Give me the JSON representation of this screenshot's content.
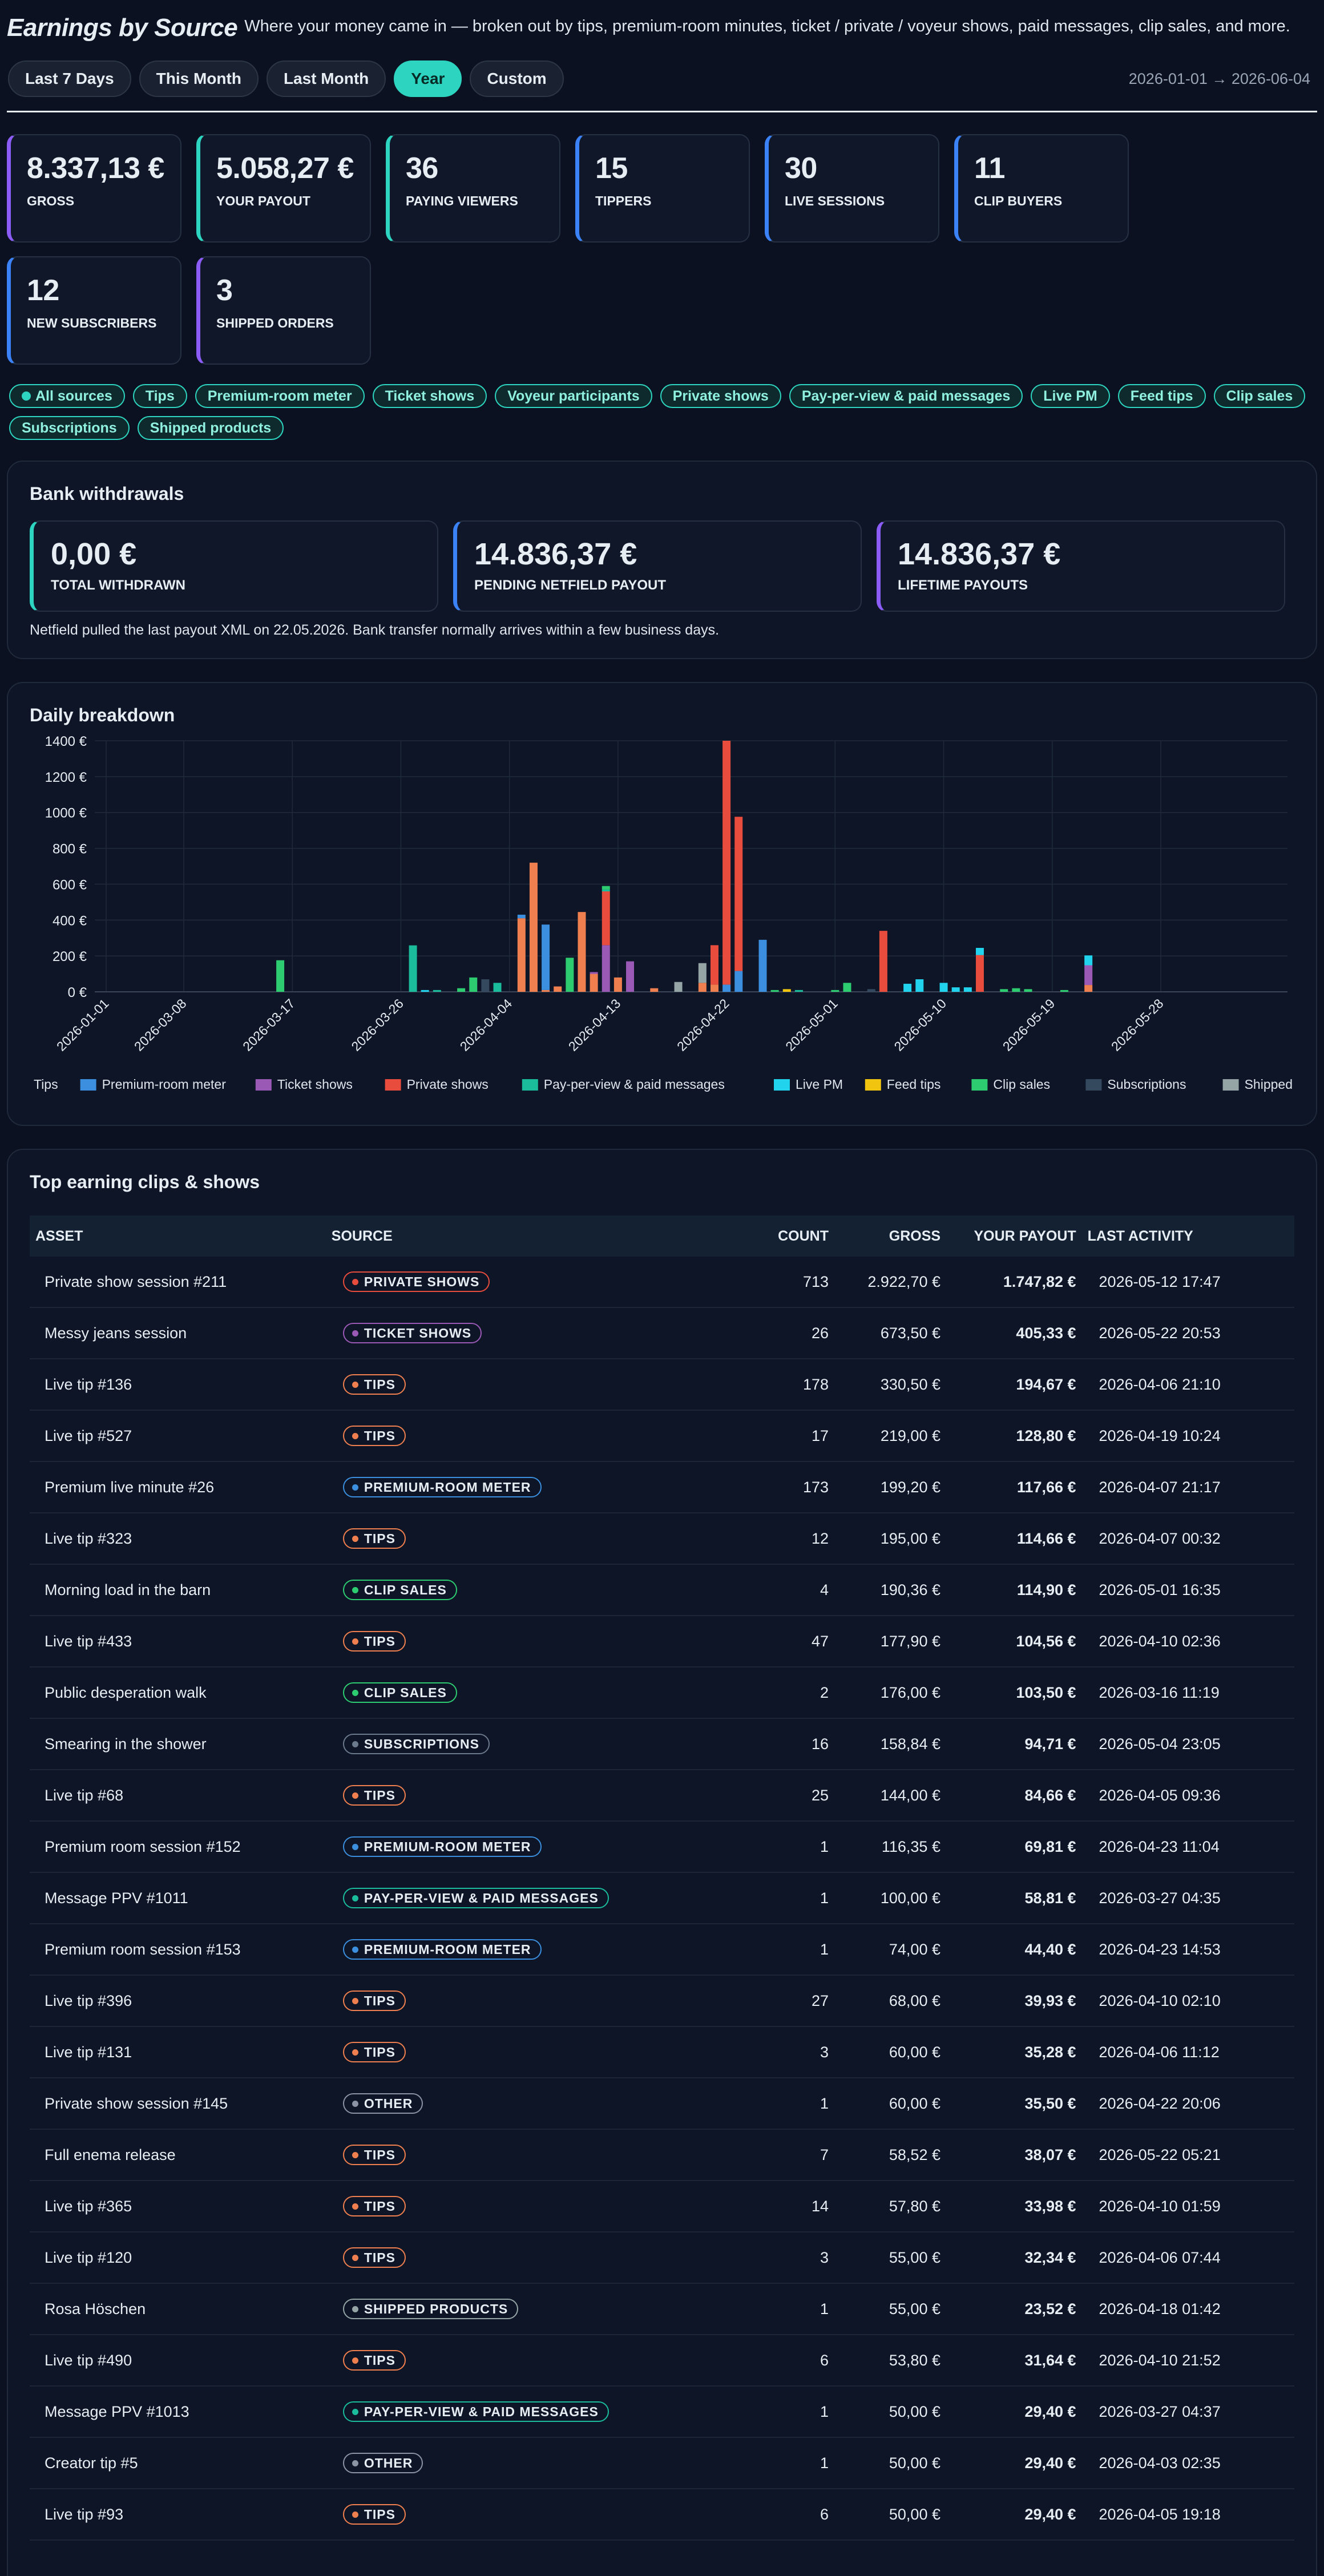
{
  "header": {
    "title": "Earnings by Source",
    "subtitle": "Where your money came in — broken out by tips, premium-room minutes, ticket / private / voyeur shows, paid messages, clip sales, and more."
  },
  "periods": [
    "Last 7 Days",
    "This Month",
    "Last Month",
    "Year",
    "Custom"
  ],
  "active_period": "Year",
  "date_range": "2026-01-01 → 2026-06-04",
  "stats": [
    {
      "value": "8.337,13 €",
      "label": "Gross",
      "accent": "#8b5cf6"
    },
    {
      "value": "5.058,27 €",
      "label": "Your payout",
      "accent": "#2dd4bf"
    },
    {
      "value": "36",
      "label": "Paying viewers",
      "accent": "#2dd4bf"
    },
    {
      "value": "15",
      "label": "Tippers",
      "accent": "#3b82f6"
    },
    {
      "value": "30",
      "label": "Live sessions",
      "accent": "#3b82f6"
    },
    {
      "value": "11",
      "label": "Clip buyers",
      "accent": "#3b82f6"
    },
    {
      "value": "12",
      "label": "New subscribers",
      "accent": "#3b82f6"
    },
    {
      "value": "3",
      "label": "Shipped orders",
      "accent": "#8b5cf6"
    }
  ],
  "filters": [
    "All sources",
    "Tips",
    "Premium-room meter",
    "Ticket shows",
    "Voyeur participants",
    "Private shows",
    "Pay-per-view & paid messages",
    "Live PM",
    "Feed tips",
    "Clip sales",
    "Subscriptions",
    "Shipped products"
  ],
  "withdrawals": {
    "title": "Bank withdrawals",
    "cards": [
      {
        "value": "0,00 €",
        "label": "TOTAL WITHDRAWN"
      },
      {
        "value": "14.836,37 €",
        "label": "PENDING NETFIELD PAYOUT"
      },
      {
        "value": "14.836,37 €",
        "label": "LIFETIME PAYOUTS"
      }
    ],
    "note": "Netfield pulled the last payout XML on 22.05.2026. Bank transfer normally arrives within a few business days."
  },
  "chart_title": "Daily breakdown",
  "chart_data": {
    "type": "bar",
    "stacked": true,
    "x_ticks": [
      "2026-01-01",
      "2026-03-08",
      "2026-03-17",
      "2026-03-26",
      "2026-04-04",
      "2026-04-13",
      "2026-04-22",
      "2026-05-01",
      "2026-05-10",
      "2026-05-19",
      "2026-05-28"
    ],
    "y_ticks": [
      "0 €",
      "200 €",
      "400 €",
      "600 €",
      "800 €",
      "1000 €",
      "1200 €",
      "1400 €"
    ],
    "ylim": [
      0,
      1400
    ],
    "grid": true,
    "legend_position": "bottom",
    "series": [
      {
        "name": "Tips",
        "color": "#f07f4f"
      },
      {
        "name": "Premium-room meter",
        "color": "#3b8fde"
      },
      {
        "name": "Ticket shows",
        "color": "#9b59b6"
      },
      {
        "name": "Private shows",
        "color": "#e74c3c"
      },
      {
        "name": "Pay-per-view & paid messages",
        "color": "#1abc9c"
      },
      {
        "name": "Live PM",
        "color": "#22d3ee"
      },
      {
        "name": "Feed tips",
        "color": "#f1c40f"
      },
      {
        "name": "Clip sales",
        "color": "#2ecc71"
      },
      {
        "name": "Subscriptions",
        "color": "#34495e"
      },
      {
        "name": "Shipped products",
        "color": "#95a5a6"
      }
    ],
    "bars": [
      {
        "date": "2026-03-16",
        "Clip sales": 176
      },
      {
        "date": "2026-03-27",
        "Pay-per-view & paid messages": 259
      },
      {
        "date": "2026-03-28",
        "Live PM": 10
      },
      {
        "date": "2026-03-29",
        "Pay-per-view & paid messages": 10
      },
      {
        "date": "2026-03-31",
        "Clip sales": 20
      },
      {
        "date": "2026-04-01",
        "Clip sales": 80
      },
      {
        "date": "2026-04-02",
        "Subscriptions": 70
      },
      {
        "date": "2026-04-03",
        "Pay-per-view & paid messages": 50
      },
      {
        "date": "2026-04-05",
        "Tips": 410,
        "Premium-room meter": 20
      },
      {
        "date": "2026-04-06",
        "Tips": 720
      },
      {
        "date": "2026-04-07",
        "Premium-room meter": 365,
        "Tips": 10
      },
      {
        "date": "2026-04-08",
        "Tips": 30
      },
      {
        "date": "2026-04-09",
        "Clip sales": 190
      },
      {
        "date": "2026-04-10",
        "Tips": 445
      },
      {
        "date": "2026-04-11",
        "Tips": 100,
        "Ticket shows": 10
      },
      {
        "date": "2026-04-12",
        "Private shows": 300,
        "Ticket shows": 260,
        "Clip sales": 20,
        "Pay-per-view & paid messages": 10
      },
      {
        "date": "2026-04-13",
        "Tips": 80
      },
      {
        "date": "2026-04-14",
        "Ticket shows": 170
      },
      {
        "date": "2026-04-16",
        "Tips": 20
      },
      {
        "date": "2026-04-18",
        "Shipped products": 55
      },
      {
        "date": "2026-04-20",
        "Tips": 50,
        "Shipped products": 110
      },
      {
        "date": "2026-04-21",
        "Tips": 40,
        "Private shows": 220
      },
      {
        "date": "2026-04-22",
        "Private shows": 1360,
        "Premium-room meter": 40
      },
      {
        "date": "2026-04-23",
        "Private shows": 860,
        "Premium-room meter": 116
      },
      {
        "date": "2026-04-25",
        "Premium-room meter": 290
      },
      {
        "date": "2026-04-26",
        "Clip sales": 10
      },
      {
        "date": "2026-04-27",
        "Feed tips": 15
      },
      {
        "date": "2026-04-28",
        "Pay-per-view & paid messages": 10
      },
      {
        "date": "2026-05-01",
        "Clip sales": 10
      },
      {
        "date": "2026-05-02",
        "Clip sales": 50
      },
      {
        "date": "2026-05-04",
        "Subscriptions": 15
      },
      {
        "date": "2026-05-05",
        "Private shows": 340
      },
      {
        "date": "2026-05-07",
        "Live PM": 45
      },
      {
        "date": "2026-05-08",
        "Live PM": 70
      },
      {
        "date": "2026-05-10",
        "Live PM": 50
      },
      {
        "date": "2026-05-11",
        "Live PM": 25
      },
      {
        "date": "2026-05-12",
        "Live PM": 25
      },
      {
        "date": "2026-05-13",
        "Private shows": 205,
        "Live PM": 40
      },
      {
        "date": "2026-05-15",
        "Clip sales": 15
      },
      {
        "date": "2026-05-16",
        "Clip sales": 20
      },
      {
        "date": "2026-05-17",
        "Clip sales": 15
      },
      {
        "date": "2026-05-20",
        "Clip sales": 10
      },
      {
        "date": "2026-05-22",
        "Tips": 38,
        "Ticket shows": 110,
        "Live PM": 55
      }
    ]
  },
  "table": {
    "title": "Top earning clips & shows",
    "headers": [
      "ASSET",
      "SOURCE",
      "COUNT",
      "GROSS",
      "YOUR PAYOUT",
      "LAST ACTIVITY"
    ],
    "source_colors": {
      "PRIVATE SHOWS": "#e74c3c",
      "TICKET SHOWS": "#9b59b6",
      "TIPS": "#f07f4f",
      "PREMIUM-ROOM METER": "#3b8fde",
      "CLIP SALES": "#2ecc71",
      "SUBSCRIPTIONS": "#6b7a8c",
      "PAY-PER-VIEW & PAID MESSAGES": "#1abc9c",
      "OTHER": "#8a94a3",
      "SHIPPED PRODUCTS": "#95a5a6"
    },
    "rows": [
      {
        "asset": "Private show session #211",
        "source": "PRIVATE SHOWS",
        "count": "713",
        "gross": "2.922,70 €",
        "payout": "1.747,82 €",
        "last": "2026-05-12 17:47"
      },
      {
        "asset": "Messy jeans session",
        "source": "TICKET SHOWS",
        "count": "26",
        "gross": "673,50 €",
        "payout": "405,33 €",
        "last": "2026-05-22 20:53"
      },
      {
        "asset": "Live tip #136",
        "source": "TIPS",
        "count": "178",
        "gross": "330,50 €",
        "payout": "194,67 €",
        "last": "2026-04-06 21:10"
      },
      {
        "asset": "Live tip #527",
        "source": "TIPS",
        "count": "17",
        "gross": "219,00 €",
        "payout": "128,80 €",
        "last": "2026-04-19 10:24"
      },
      {
        "asset": "Premium live minute #26",
        "source": "PREMIUM-ROOM METER",
        "count": "173",
        "gross": "199,20 €",
        "payout": "117,66 €",
        "last": "2026-04-07 21:17"
      },
      {
        "asset": "Live tip #323",
        "source": "TIPS",
        "count": "12",
        "gross": "195,00 €",
        "payout": "114,66 €",
        "last": "2026-04-07 00:32"
      },
      {
        "asset": "Morning load in the barn",
        "source": "CLIP SALES",
        "count": "4",
        "gross": "190,36 €",
        "payout": "114,90 €",
        "last": "2026-05-01 16:35"
      },
      {
        "asset": "Live tip #433",
        "source": "TIPS",
        "count": "47",
        "gross": "177,90 €",
        "payout": "104,56 €",
        "last": "2026-04-10 02:36"
      },
      {
        "asset": "Public desperation walk",
        "source": "CLIP SALES",
        "count": "2",
        "gross": "176,00 €",
        "payout": "103,50 €",
        "last": "2026-03-16 11:19"
      },
      {
        "asset": "Smearing in the shower",
        "source": "SUBSCRIPTIONS",
        "count": "16",
        "gross": "158,84 €",
        "payout": "94,71 €",
        "last": "2026-05-04 23:05"
      },
      {
        "asset": "Live tip #68",
        "source": "TIPS",
        "count": "25",
        "gross": "144,00 €",
        "payout": "84,66 €",
        "last": "2026-04-05 09:36"
      },
      {
        "asset": "Premium room session #152",
        "source": "PREMIUM-ROOM METER",
        "count": "1",
        "gross": "116,35 €",
        "payout": "69,81 €",
        "last": "2026-04-23 11:04"
      },
      {
        "asset": "Message PPV #1011",
        "source": "PAY-PER-VIEW & PAID MESSAGES",
        "count": "1",
        "gross": "100,00 €",
        "payout": "58,81 €",
        "last": "2026-03-27 04:35"
      },
      {
        "asset": "Premium room session #153",
        "source": "PREMIUM-ROOM METER",
        "count": "1",
        "gross": "74,00 €",
        "payout": "44,40 €",
        "last": "2026-04-23 14:53"
      },
      {
        "asset": "Live tip #396",
        "source": "TIPS",
        "count": "27",
        "gross": "68,00 €",
        "payout": "39,93 €",
        "last": "2026-04-10 02:10"
      },
      {
        "asset": "Live tip #131",
        "source": "TIPS",
        "count": "3",
        "gross": "60,00 €",
        "payout": "35,28 €",
        "last": "2026-04-06 11:12"
      },
      {
        "asset": "Private show session #145",
        "source": "OTHER",
        "count": "1",
        "gross": "60,00 €",
        "payout": "35,50 €",
        "last": "2026-04-22 20:06"
      },
      {
        "asset": "Full enema release",
        "source": "TIPS",
        "count": "7",
        "gross": "58,52 €",
        "payout": "38,07 €",
        "last": "2026-05-22 05:21"
      },
      {
        "asset": "Live tip #365",
        "source": "TIPS",
        "count": "14",
        "gross": "57,80 €",
        "payout": "33,98 €",
        "last": "2026-04-10 01:59"
      },
      {
        "asset": "Live tip #120",
        "source": "TIPS",
        "count": "3",
        "gross": "55,00 €",
        "payout": "32,34 €",
        "last": "2026-04-06 07:44"
      },
      {
        "asset": "Rosa Höschen",
        "source": "SHIPPED PRODUCTS",
        "count": "1",
        "gross": "55,00 €",
        "payout": "23,52 €",
        "last": "2026-04-18 01:42"
      },
      {
        "asset": "Live tip #490",
        "source": "TIPS",
        "count": "6",
        "gross": "53,80 €",
        "payout": "31,64 €",
        "last": "2026-04-10 21:52"
      },
      {
        "asset": "Message PPV #1013",
        "source": "PAY-PER-VIEW & PAID MESSAGES",
        "count": "1",
        "gross": "50,00 €",
        "payout": "29,40 €",
        "last": "2026-03-27 04:37"
      },
      {
        "asset": "Creator tip #5",
        "source": "OTHER",
        "count": "1",
        "gross": "50,00 €",
        "payout": "29,40 €",
        "last": "2026-04-03 02:35"
      },
      {
        "asset": "Live tip #93",
        "source": "TIPS",
        "count": "6",
        "gross": "50,00 €",
        "payout": "29,40 €",
        "last": "2026-04-05 19:18"
      }
    ]
  }
}
